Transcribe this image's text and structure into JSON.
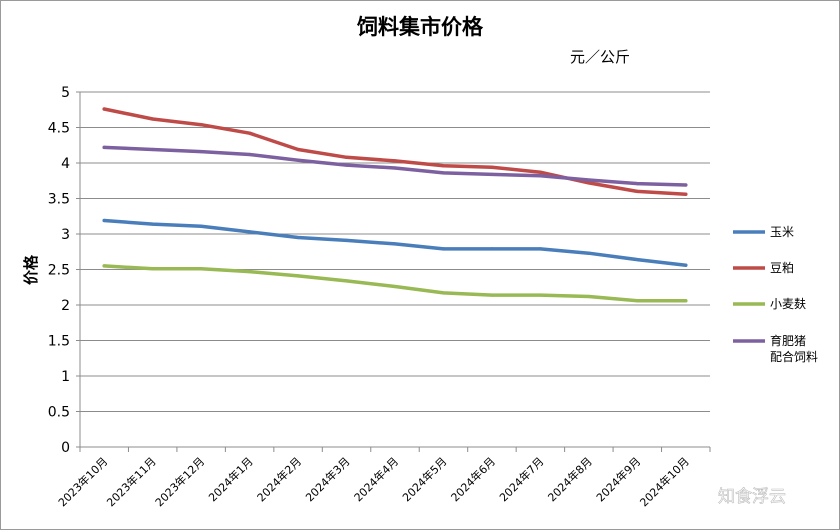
{
  "chart_data": {
    "type": "line",
    "title": "饲料集市价格",
    "unit_label": "元／公斤",
    "xlabel": "",
    "ylabel": "价格",
    "ylim": [
      0,
      5
    ],
    "yticks": [
      "0",
      "0.5",
      "1",
      "1.5",
      "2",
      "2.5",
      "3",
      "3.5",
      "4",
      "4.5",
      "5"
    ],
    "grid": true,
    "legend_position": "right",
    "categories": [
      "2023年10月",
      "2023年11月",
      "2023年12月",
      "2024年1月",
      "2024年2月",
      "2024年3月",
      "2024年4月",
      "2024年5月",
      "2024年6月",
      "2024年7月",
      "2024年8月",
      "2024年9月",
      "2024年10月"
    ],
    "series": [
      {
        "name": "玉米",
        "color": "#4a7ebb",
        "values": [
          3.19,
          3.14,
          3.11,
          3.03,
          2.95,
          2.91,
          2.86,
          2.79,
          2.79,
          2.79,
          2.73,
          2.64,
          2.56
        ]
      },
      {
        "name": "豆粕",
        "color": "#be4b48",
        "values": [
          4.76,
          4.62,
          4.54,
          4.42,
          4.19,
          4.08,
          4.03,
          3.96,
          3.94,
          3.87,
          3.72,
          3.6,
          3.56
        ]
      },
      {
        "name": "小麦麸",
        "color": "#98b954",
        "values": [
          2.55,
          2.51,
          2.51,
          2.47,
          2.41,
          2.34,
          2.26,
          2.17,
          2.14,
          2.14,
          2.12,
          2.06,
          2.06
        ]
      },
      {
        "name": "育肥猪配合饲料",
        "legend_lines": [
          "育肥猪",
          "配合饲料"
        ],
        "color": "#7d60a0",
        "values": [
          4.22,
          4.19,
          4.16,
          4.12,
          4.04,
          3.97,
          3.93,
          3.86,
          3.84,
          3.82,
          3.76,
          3.71,
          3.69
        ]
      }
    ]
  },
  "watermark": "知食浮云"
}
